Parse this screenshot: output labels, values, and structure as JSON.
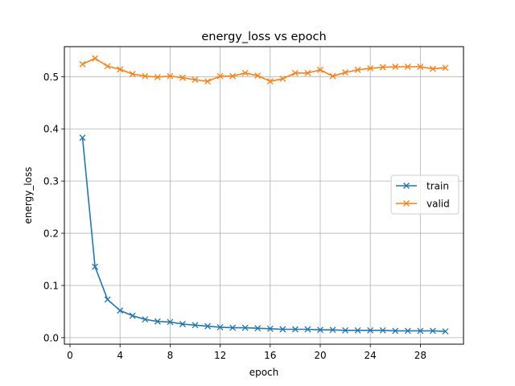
{
  "chart_data": {
    "type": "line",
    "title": "energy_loss vs epoch",
    "xlabel": "epoch",
    "ylabel": "energy_loss",
    "xlim": [
      -0.45,
      31.45
    ],
    "ylim": [
      -0.0125,
      0.5575
    ],
    "xticks": [
      0,
      4,
      8,
      12,
      16,
      20,
      24,
      28
    ],
    "yticks": [
      0.0,
      0.1,
      0.2,
      0.3,
      0.4,
      0.5
    ],
    "ytick_labels": [
      "0.0",
      "0.1",
      "0.2",
      "0.3",
      "0.4",
      "0.5"
    ],
    "grid": true,
    "legend_position": "center-right",
    "x": [
      1,
      2,
      3,
      4,
      5,
      6,
      7,
      8,
      9,
      10,
      11,
      12,
      13,
      14,
      15,
      16,
      17,
      18,
      19,
      20,
      21,
      22,
      23,
      24,
      25,
      26,
      27,
      28,
      29,
      30
    ],
    "series": [
      {
        "name": "train",
        "color": "#1f77b4",
        "marker": "x",
        "values": [
          0.383,
          0.136,
          0.073,
          0.052,
          0.042,
          0.035,
          0.031,
          0.03,
          0.026,
          0.024,
          0.022,
          0.02,
          0.019,
          0.019,
          0.018,
          0.017,
          0.016,
          0.016,
          0.016,
          0.015,
          0.015,
          0.014,
          0.014,
          0.014,
          0.014,
          0.013,
          0.013,
          0.013,
          0.013,
          0.012
        ]
      },
      {
        "name": "valid",
        "color": "#ff7f0e",
        "marker": "x",
        "values": [
          0.524,
          0.535,
          0.52,
          0.514,
          0.505,
          0.501,
          0.499,
          0.501,
          0.498,
          0.494,
          0.491,
          0.501,
          0.501,
          0.507,
          0.502,
          0.491,
          0.496,
          0.507,
          0.507,
          0.513,
          0.501,
          0.508,
          0.513,
          0.516,
          0.518,
          0.519,
          0.519,
          0.519,
          0.515,
          0.517
        ]
      }
    ]
  }
}
